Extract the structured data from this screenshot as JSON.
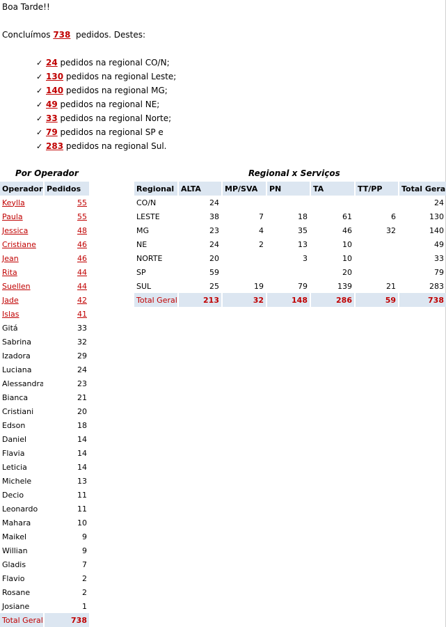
{
  "greeting": "Boa Tarde!!",
  "summary": {
    "prefix": "Concluímos",
    "total": "738",
    "suffix": "pedidos. Destes:"
  },
  "regional_lines": [
    {
      "count": "24",
      "text": "pedidos na regional CO/N;"
    },
    {
      "count": "130",
      "text": "pedidos na regional Leste;"
    },
    {
      "count": "140",
      "text": "pedidos na regional MG;"
    },
    {
      "count": "49",
      "text": "pedidos na regional NE;"
    },
    {
      "count": "33",
      "text": "pedidos na regional Norte;"
    },
    {
      "count": "79",
      "text": "pedidos na regional SP e"
    },
    {
      "count": "283",
      "text": "pedidos na regional Sul."
    }
  ],
  "check_symbol": "✓",
  "operator_section": {
    "title": "Por Operador",
    "headers": [
      "Operador",
      "Pedidos"
    ],
    "rows": [
      {
        "name": "Keylla",
        "value": "55",
        "link": true
      },
      {
        "name": "Paula",
        "value": "55",
        "link": true
      },
      {
        "name": "Jessica",
        "value": "48",
        "link": true
      },
      {
        "name": "Cristiane",
        "value": "46",
        "link": true
      },
      {
        "name": "Jean",
        "value": "46",
        "link": true
      },
      {
        "name": "Rita",
        "value": "44",
        "link": true
      },
      {
        "name": "Suellen",
        "value": "44",
        "link": true
      },
      {
        "name": "Jade",
        "value": "42",
        "link": true
      },
      {
        "name": "Islas",
        "value": "41",
        "link": true
      },
      {
        "name": "Gitá",
        "value": "33",
        "link": false
      },
      {
        "name": "Sabrina",
        "value": "32",
        "link": false
      },
      {
        "name": "Izadora",
        "value": "29",
        "link": false
      },
      {
        "name": "Luciana",
        "value": "24",
        "link": false
      },
      {
        "name": "Alessandra",
        "value": "23",
        "link": false
      },
      {
        "name": "Bianca",
        "value": "21",
        "link": false
      },
      {
        "name": "Cristiani",
        "value": "20",
        "link": false
      },
      {
        "name": "Edson",
        "value": "18",
        "link": false
      },
      {
        "name": "Daniel",
        "value": "14",
        "link": false
      },
      {
        "name": "Flavia",
        "value": "14",
        "link": false
      },
      {
        "name": "Leticia",
        "value": "14",
        "link": false
      },
      {
        "name": "Michele",
        "value": "13",
        "link": false
      },
      {
        "name": "Decio",
        "value": "11",
        "link": false
      },
      {
        "name": "Leonardo",
        "value": "11",
        "link": false
      },
      {
        "name": "Mahara",
        "value": "10",
        "link": false
      },
      {
        "name": "Maikel",
        "value": "9",
        "link": false
      },
      {
        "name": "Willian",
        "value": "9",
        "link": false
      },
      {
        "name": "Gladis",
        "value": "7",
        "link": false
      },
      {
        "name": "Flavio",
        "value": "2",
        "link": false
      },
      {
        "name": "Rosane",
        "value": "2",
        "link": false
      },
      {
        "name": "Josiane",
        "value": "1",
        "link": false
      }
    ],
    "total": {
      "label": "Total Geral",
      "value": "738"
    }
  },
  "regional_section": {
    "title": "Regional x Serviços",
    "headers": [
      "Regional",
      "ALTA",
      "MP/SVA",
      "PN",
      "TA",
      "TT/PP",
      "Total Geral"
    ],
    "rows": [
      [
        "CO/N",
        "24",
        "",
        "",
        "",
        "",
        "24"
      ],
      [
        "LESTE",
        "38",
        "7",
        "18",
        "61",
        "6",
        "130"
      ],
      [
        "MG",
        "23",
        "4",
        "35",
        "46",
        "32",
        "140"
      ],
      [
        "NE",
        "24",
        "2",
        "13",
        "10",
        "",
        "49"
      ],
      [
        "NORTE",
        "20",
        "",
        "3",
        "10",
        "",
        "33"
      ],
      [
        "SP",
        "59",
        "",
        "",
        "20",
        "",
        "79"
      ],
      [
        "SUL",
        "25",
        "19",
        "79",
        "139",
        "21",
        "283"
      ]
    ],
    "total": [
      "Total Geral",
      "213",
      "32",
      "148",
      "286",
      "59",
      "738"
    ]
  }
}
